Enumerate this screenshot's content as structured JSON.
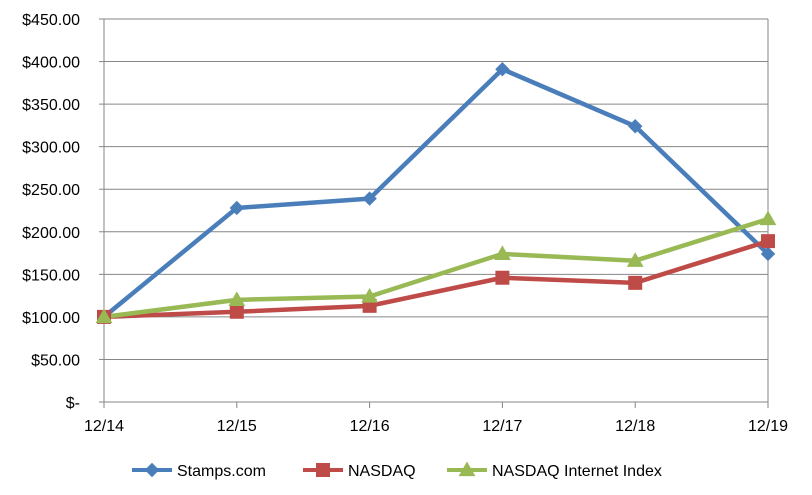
{
  "chart_data": {
    "type": "line",
    "categories": [
      "12/14",
      "12/15",
      "12/16",
      "12/17",
      "12/18",
      "12/19"
    ],
    "series": [
      {
        "name": "Stamps.com",
        "values": [
          100,
          228,
          239,
          391,
          324,
          174
        ],
        "color": "#4a7ebb",
        "marker": "diamond"
      },
      {
        "name": "NASDAQ",
        "values": [
          100,
          106,
          113,
          146,
          140,
          189
        ],
        "color": "#be4b48",
        "marker": "square"
      },
      {
        "name": "NASDAQ Internet Index",
        "values": [
          100,
          120,
          124,
          174,
          166,
          215
        ],
        "color": "#98b954",
        "marker": "triangle"
      }
    ],
    "y_ticks": [
      0,
      50,
      100,
      150,
      200,
      250,
      300,
      350,
      400,
      450
    ],
    "y_tick_labels": [
      "$-",
      "$50.00",
      "$100.00",
      "$150.00",
      "$200.00",
      "$250.00",
      "$300.00",
      "$350.00",
      "$400.00",
      "$450.00"
    ],
    "ylim": [
      0,
      450
    ],
    "grid": true,
    "legend_position": "bottom"
  }
}
